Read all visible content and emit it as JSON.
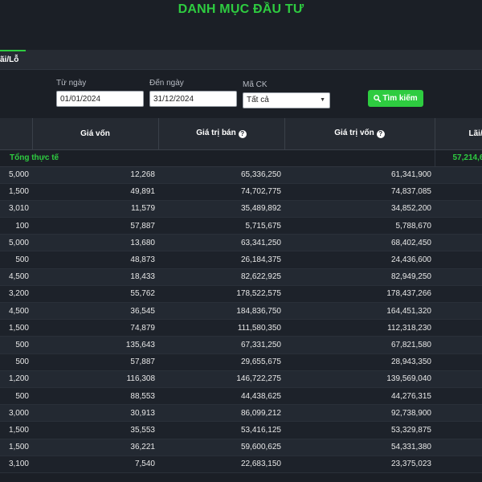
{
  "header": {
    "title": "DANH MỤC ĐẦU TƯ"
  },
  "tabs": {
    "active_label": "ãi/Lỗ"
  },
  "filters": {
    "from_label": "Từ ngày",
    "from_value": "01/01/2024",
    "to_label": "Đến ngày",
    "to_value": "31/12/2024",
    "code_label": "Mã CK",
    "code_value": "Tất cả",
    "search_label": "Tìm kiếm"
  },
  "table": {
    "columns": [
      "",
      "Giá vốn",
      "Giá trị bán",
      "Giá trị vốn",
      "Lãi/L"
    ],
    "total": {
      "label": "Tổng thực tế",
      "value": "57,214,6"
    },
    "rows": [
      [
        "5,000",
        "12,268",
        "65,336,250",
        "61,341,900"
      ],
      [
        "1,500",
        "49,891",
        "74,702,775",
        "74,837,085"
      ],
      [
        "3,010",
        "11,579",
        "35,489,892",
        "34,852,200"
      ],
      [
        "100",
        "57,887",
        "5,715,675",
        "5,788,670"
      ],
      [
        "5,000",
        "13,680",
        "63,341,250",
        "68,402,450"
      ],
      [
        "500",
        "48,873",
        "26,184,375",
        "24,436,600"
      ],
      [
        "4,500",
        "18,433",
        "82,622,925",
        "82,949,250"
      ],
      [
        "3,200",
        "55,762",
        "178,522,575",
        "178,437,266"
      ],
      [
        "4,500",
        "36,545",
        "184,836,750",
        "164,451,320"
      ],
      [
        "1,500",
        "74,879",
        "111,580,350",
        "112,318,230"
      ],
      [
        "500",
        "135,643",
        "67,331,250",
        "67,821,580"
      ],
      [
        "500",
        "57,887",
        "29,655,675",
        "28,943,350"
      ],
      [
        "1,200",
        "116,308",
        "146,722,275",
        "139,569,040"
      ],
      [
        "500",
        "88,553",
        "44,438,625",
        "44,276,315"
      ],
      [
        "3,000",
        "30,913",
        "86,099,212",
        "92,738,900"
      ],
      [
        "1,500",
        "35,553",
        "53,416,125",
        "53,329,875"
      ],
      [
        "1,500",
        "36,221",
        "59,600,625",
        "54,331,380"
      ],
      [
        "3,100",
        "7,540",
        "22,683,150",
        "23,375,023"
      ]
    ]
  },
  "colors": {
    "accent": "#2ecc40",
    "background": "#1b1f26"
  },
  "icons": {
    "search": "search-icon",
    "help": "help-circle-icon",
    "dropdown": "chevron-down-icon"
  }
}
